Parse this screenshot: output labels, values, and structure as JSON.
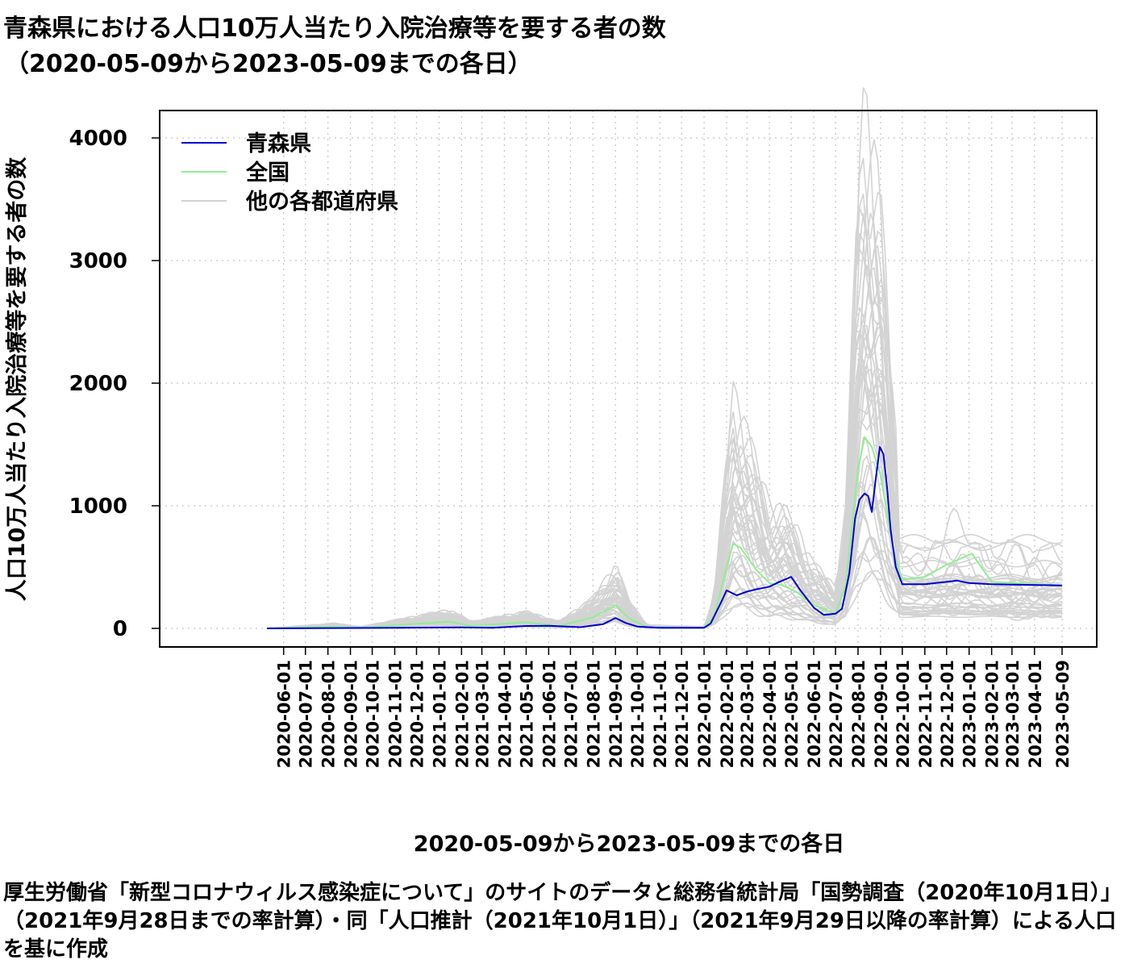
{
  "title": "青森県における人口10万人当たり入院治療等を要する者の数",
  "subtitle": "（2020-05-09から2023-05-09までの各日）",
  "source_note": "厚生労働省「新型コロナウィルス感染症について」のサイトのデータと総務省統計局「国勢調査（2020年10月1日）」（2021年9月28日までの率計算）・同「人口推計（2021年10月1日）」（2021年9月29日以降の率計算）による人口を基に作成",
  "chart_data": {
    "type": "line",
    "xlabel": "2020-05-09から2023-05-09までの各日",
    "ylabel": "人口10万人当たり入院治療等を要する者の数",
    "xlim": [
      "2020-05-09",
      "2023-05-09"
    ],
    "ylim": [
      0,
      4000
    ],
    "y_ticks": [
      "0",
      "1000",
      "2000",
      "3000",
      "4000"
    ],
    "x_ticks": [
      "2020-06-01",
      "2020-07-01",
      "2020-08-01",
      "2020-09-01",
      "2020-10-01",
      "2020-11-01",
      "2020-12-01",
      "2021-01-01",
      "2021-02-01",
      "2021-03-01",
      "2021-04-01",
      "2021-05-01",
      "2021-06-01",
      "2021-07-01",
      "2021-08-01",
      "2021-09-01",
      "2021-10-01",
      "2021-11-01",
      "2021-12-01",
      "2022-01-01",
      "2022-02-01",
      "2022-03-01",
      "2022-04-01",
      "2022-05-01",
      "2022-06-01",
      "2022-07-01",
      "2022-08-01",
      "2022-09-01",
      "2022-10-01",
      "2022-11-01",
      "2022-12-01",
      "2023-01-01",
      "2023-02-01",
      "2023-03-01",
      "2023-04-01",
      "2023-05-09"
    ],
    "grid": true,
    "legend_position": "top-left",
    "legend": [
      "青森県",
      "全国",
      "他の各都道府県"
    ],
    "colors": {
      "aomori": "#0000cc",
      "national": "#90ee90",
      "others": "#d3d3d3"
    },
    "series": [
      {
        "name": "青森県",
        "color": "#0000cc",
        "points": [
          [
            "2020-05-09",
            0
          ],
          [
            "2020-11-10",
            5
          ],
          [
            "2021-02-01",
            8
          ],
          [
            "2021-03-15",
            5
          ],
          [
            "2021-05-01",
            20
          ],
          [
            "2021-06-01",
            22
          ],
          [
            "2021-07-15",
            10
          ],
          [
            "2021-08-15",
            35
          ],
          [
            "2021-09-01",
            85
          ],
          [
            "2021-09-15",
            45
          ],
          [
            "2021-10-01",
            15
          ],
          [
            "2021-11-01",
            5
          ],
          [
            "2022-01-01",
            5
          ],
          [
            "2022-01-10",
            40
          ],
          [
            "2022-01-25",
            220
          ],
          [
            "2022-02-01",
            310
          ],
          [
            "2022-02-15",
            270
          ],
          [
            "2022-03-01",
            300
          ],
          [
            "2022-03-15",
            320
          ],
          [
            "2022-04-01",
            340
          ],
          [
            "2022-04-15",
            380
          ],
          [
            "2022-05-01",
            420
          ],
          [
            "2022-05-15",
            300
          ],
          [
            "2022-06-01",
            170
          ],
          [
            "2022-06-15",
            110
          ],
          [
            "2022-07-01",
            120
          ],
          [
            "2022-07-10",
            160
          ],
          [
            "2022-07-20",
            450
          ],
          [
            "2022-07-28",
            900
          ],
          [
            "2022-08-03",
            1050
          ],
          [
            "2022-08-10",
            1100
          ],
          [
            "2022-08-15",
            1080
          ],
          [
            "2022-08-20",
            950
          ],
          [
            "2022-08-25",
            1200
          ],
          [
            "2022-08-31",
            1480
          ],
          [
            "2022-09-05",
            1420
          ],
          [
            "2022-09-10",
            1150
          ],
          [
            "2022-09-15",
            800
          ],
          [
            "2022-09-22",
            500
          ],
          [
            "2022-10-01",
            360
          ],
          [
            "2022-11-01",
            360
          ],
          [
            "2022-12-01",
            380
          ],
          [
            "2022-12-15",
            390
          ],
          [
            "2023-01-01",
            370
          ],
          [
            "2023-02-01",
            360
          ],
          [
            "2023-05-09",
            350
          ]
        ]
      },
      {
        "name": "全国",
        "color": "#90ee90",
        "points": [
          [
            "2020-05-09",
            0
          ],
          [
            "2020-08-10",
            15
          ],
          [
            "2020-09-15",
            5
          ],
          [
            "2021-01-15",
            55
          ],
          [
            "2021-02-15",
            20
          ],
          [
            "2021-05-01",
            50
          ],
          [
            "2021-06-15",
            20
          ],
          [
            "2021-08-01",
            90
          ],
          [
            "2021-09-01",
            190
          ],
          [
            "2021-09-20",
            80
          ],
          [
            "2021-10-15",
            10
          ],
          [
            "2022-01-01",
            5
          ],
          [
            "2022-01-15",
            100
          ],
          [
            "2022-02-01",
            500
          ],
          [
            "2022-02-10",
            690
          ],
          [
            "2022-02-20",
            660
          ],
          [
            "2022-03-15",
            470
          ],
          [
            "2022-04-01",
            370
          ],
          [
            "2022-04-20",
            350
          ],
          [
            "2022-05-10",
            290
          ],
          [
            "2022-06-01",
            190
          ],
          [
            "2022-07-01",
            120
          ],
          [
            "2022-07-15",
            350
          ],
          [
            "2022-08-01",
            1300
          ],
          [
            "2022-08-10",
            1560
          ],
          [
            "2022-08-20",
            1480
          ],
          [
            "2022-09-01",
            1250
          ],
          [
            "2022-09-20",
            600
          ],
          [
            "2022-10-01",
            400
          ],
          [
            "2022-11-01",
            420
          ],
          [
            "2022-12-01",
            520
          ],
          [
            "2023-01-05",
            610
          ],
          [
            "2023-01-20",
            480
          ],
          [
            "2023-02-01",
            380
          ],
          [
            "2023-05-09",
            350
          ]
        ]
      }
    ]
  }
}
